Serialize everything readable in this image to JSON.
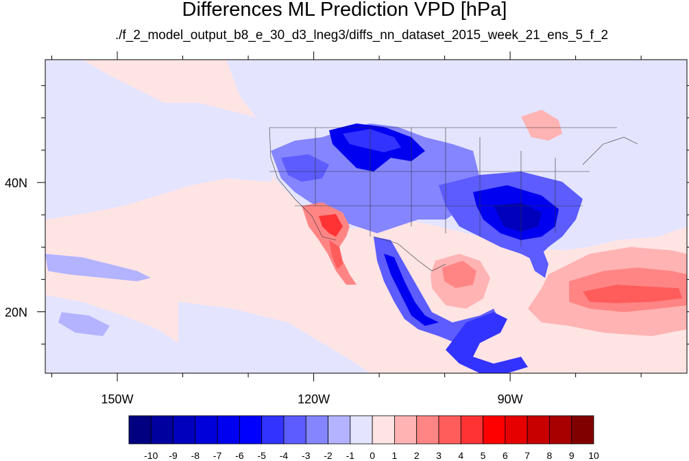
{
  "title": "Differences ML Prediction VPD [hPa]",
  "subtitle": "./f_2_model_output_b8_e_30_d3_lneg3/diffs_nn_dataset_2015_week_21_ens_5_f_2",
  "map": {
    "lon_range": [
      -161,
      -63
    ],
    "lat_range": [
      10.5,
      59
    ],
    "x_ticks": [
      {
        "lon": -150,
        "label": "150W"
      },
      {
        "lon": -120,
        "label": "120W"
      },
      {
        "lon": -90,
        "label": "90W"
      }
    ],
    "y_ticks": [
      {
        "lat": 40,
        "label": "40N"
      },
      {
        "lat": 20,
        "label": "20N"
      }
    ],
    "background_color": "#ffe4e4"
  },
  "colorbar": {
    "labels": [
      "-10",
      "-9",
      "-8",
      "-7",
      "-6",
      "-5",
      "-4",
      "-3",
      "-2",
      "-1",
      "0",
      "1",
      "2",
      "3",
      "4",
      "5",
      "6",
      "7",
      "8",
      "9",
      "10"
    ],
    "colors": [
      "#000080",
      "#00009e",
      "#0000bc",
      "#0000da",
      "#0000f0",
      "#0000ff",
      "#3333ff",
      "#5c5cff",
      "#8585ff",
      "#b3b3ff",
      "#e4e4ff",
      "#ffe4e4",
      "#ffb3b3",
      "#ff8585",
      "#ff5c5c",
      "#ff3333",
      "#ff0000",
      "#e60000",
      "#c80000",
      "#a80000",
      "#800000"
    ]
  },
  "regions": [
    {
      "name": "pacific-light-blue-north",
      "value": -1
    },
    {
      "name": "pacific-light-blue-hawaii",
      "value": -2
    },
    {
      "name": "canada-light-blue",
      "value": -1
    },
    {
      "name": "northern-rockies-blue",
      "value": -5
    },
    {
      "name": "southeast-us-blue",
      "value": -6
    },
    {
      "name": "california-baja-red",
      "value": 5
    },
    {
      "name": "mexico-sierra-blue",
      "value": -5
    },
    {
      "name": "central-america-blue",
      "value": -5
    },
    {
      "name": "gulf-of-mexico-red",
      "value": 2
    },
    {
      "name": "caribbean-atlantic-red",
      "value": 3
    },
    {
      "name": "great-lakes-red",
      "value": 2
    }
  ]
}
